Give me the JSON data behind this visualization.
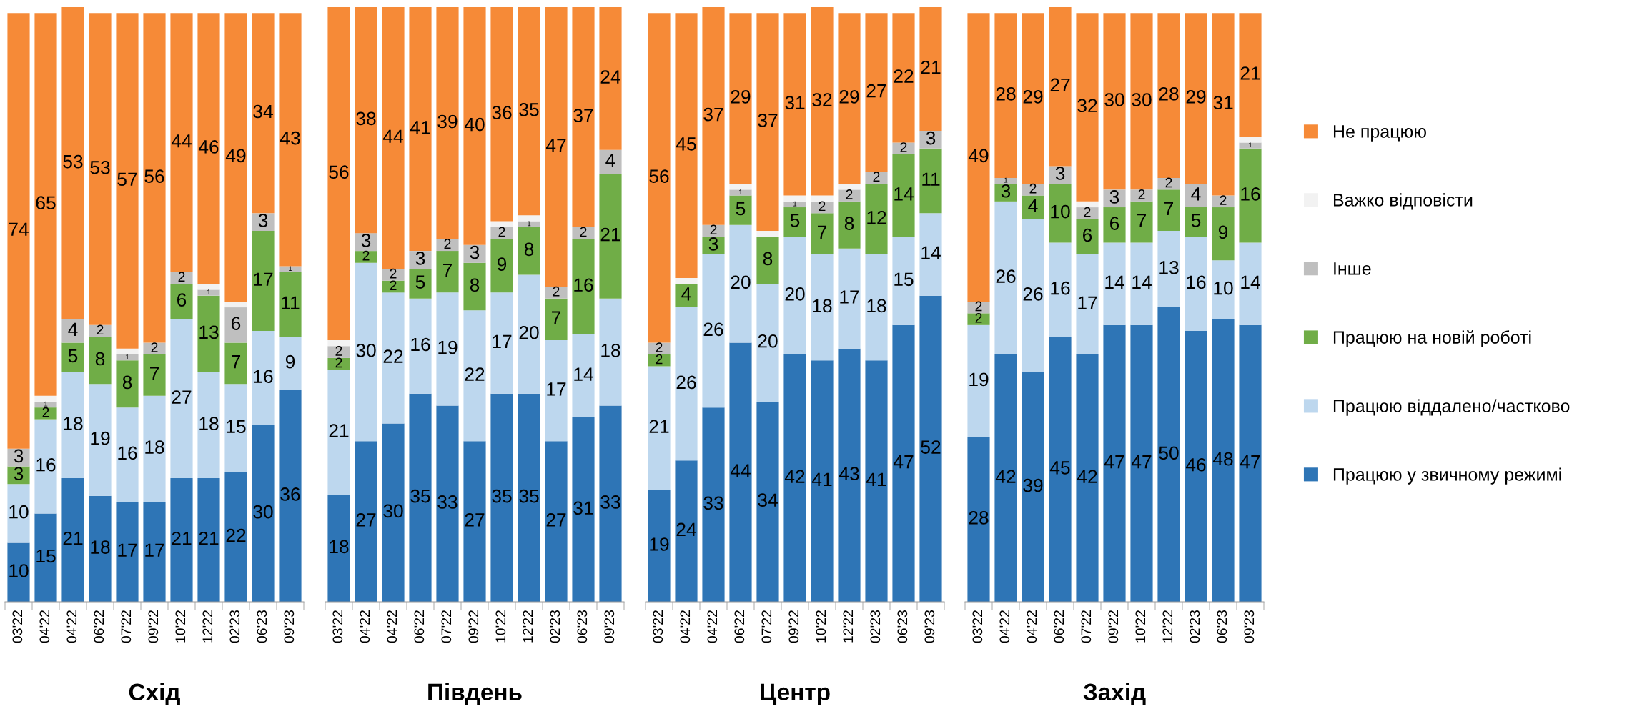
{
  "chart_data": [
    {
      "type": "bar",
      "stacked": true,
      "xlabel": "Схід",
      "categories": [
        "03'22",
        "04'22",
        "04'22",
        "06'22",
        "07'22",
        "09'22",
        "10'22",
        "12'22",
        "02'23",
        "06'23",
        "09'23"
      ],
      "tick_labels": "x",
      "grid": false,
      "legend": false,
      "series": [
        {
          "color": "#2e75b6",
          "values": [
            10,
            15,
            21,
            18,
            17,
            17,
            21,
            21,
            22,
            30,
            36
          ],
          "value_labels": [
            "10",
            "15",
            "21",
            "18",
            "17",
            "17",
            "21",
            "21",
            "22",
            "30",
            "36"
          ]
        },
        {
          "color": "#bdd7ee",
          "values": [
            10,
            16,
            18,
            19,
            16,
            18,
            27,
            18,
            15,
            16,
            9
          ],
          "value_labels": [
            "10",
            "16",
            "18",
            "19",
            "16",
            "18",
            "27",
            "18",
            "15",
            "16",
            "9"
          ]
        },
        {
          "color": "#70ad47",
          "values": [
            3,
            2,
            5,
            8,
            8,
            7,
            6,
            13,
            7,
            17,
            11
          ],
          "value_labels": [
            "3",
            "2",
            "5",
            "8",
            "8",
            "7",
            "6",
            "13",
            "7",
            "17",
            "11"
          ]
        },
        {
          "color": "#bfbfbf",
          "values": [
            3,
            1,
            4,
            2,
            1,
            2,
            2,
            1,
            6,
            3,
            1
          ],
          "value_labels": [
            "3",
            "1",
            "4",
            "2",
            "1",
            "2",
            "2",
            "1",
            "6",
            "3",
            "1"
          ]
        },
        {
          "color": "#f2f2f2",
          "values": [
            0,
            1,
            0,
            0,
            1,
            0,
            0,
            1,
            1,
            0,
            0
          ],
          "value_labels": [
            null,
            null,
            null,
            null,
            null,
            null,
            null,
            null,
            null,
            null,
            null
          ]
        },
        {
          "color": "#f68a37",
          "values": [
            74,
            65,
            53,
            53,
            57,
            56,
            44,
            46,
            49,
            34,
            43
          ],
          "value_labels": [
            "74",
            "65",
            "53",
            "53",
            "57",
            "56",
            "44",
            "46",
            "49",
            "34",
            "43"
          ]
        }
      ]
    },
    {
      "type": "bar",
      "stacked": true,
      "xlabel": "Південь",
      "categories": [
        "03'22",
        "04'22",
        "04'22",
        "06'22",
        "07'22",
        "09'22",
        "10'22",
        "12'22",
        "02'23",
        "06'23",
        "09'23"
      ],
      "tick_labels": "x",
      "grid": false,
      "legend": false,
      "series": [
        {
          "color": "#2e75b6",
          "values": [
            18,
            27,
            30,
            35,
            33,
            27,
            35,
            35,
            27,
            31,
            33
          ],
          "value_labels": [
            "18",
            "27",
            "30",
            "35",
            "33",
            "27",
            "35",
            "35",
            "27",
            "31",
            "33"
          ]
        },
        {
          "color": "#bdd7ee",
          "values": [
            21,
            30,
            22,
            16,
            19,
            22,
            17,
            20,
            17,
            14,
            18
          ],
          "value_labels": [
            "21",
            "30",
            "22",
            "16",
            "19",
            "22",
            "17",
            "20",
            "17",
            "14",
            "18"
          ]
        },
        {
          "color": "#70ad47",
          "values": [
            2,
            2,
            2,
            5,
            7,
            8,
            9,
            8,
            7,
            16,
            21
          ],
          "value_labels": [
            "2",
            "2",
            "2",
            "5",
            "7",
            "8",
            "9",
            "8",
            "7",
            "16",
            "21"
          ]
        },
        {
          "color": "#bfbfbf",
          "values": [
            2,
            3,
            2,
            3,
            2,
            3,
            2,
            1,
            2,
            2,
            4
          ],
          "value_labels": [
            "2",
            "3",
            "2",
            "3",
            "2",
            "3",
            "2",
            "1",
            "2",
            "2",
            "4"
          ]
        },
        {
          "color": "#f2f2f2",
          "values": [
            1,
            0,
            0,
            0,
            0,
            0,
            1,
            1,
            0,
            0,
            0
          ],
          "value_labels": [
            null,
            null,
            null,
            null,
            null,
            null,
            null,
            null,
            null,
            null,
            null
          ]
        },
        {
          "color": "#f68a37",
          "values": [
            56,
            38,
            44,
            41,
            39,
            40,
            36,
            35,
            47,
            37,
            24
          ],
          "value_labels": [
            "56",
            "38",
            "44",
            "41",
            "39",
            "40",
            "36",
            "35",
            "47",
            "37",
            "24"
          ]
        }
      ]
    },
    {
      "type": "bar",
      "stacked": true,
      "xlabel": "Центр",
      "categories": [
        "03'22",
        "04'22",
        "04'22",
        "06'22",
        "07'22",
        "09'22",
        "10'22",
        "12'22",
        "02'23",
        "06'23",
        "09'23"
      ],
      "tick_labels": "x",
      "grid": false,
      "legend": false,
      "series": [
        {
          "color": "#2e75b6",
          "values": [
            19,
            24,
            33,
            44,
            34,
            42,
            41,
            43,
            41,
            47,
            52
          ],
          "value_labels": [
            "19",
            "24",
            "33",
            "44",
            "34",
            "42",
            "41",
            "43",
            "41",
            "47",
            "52"
          ]
        },
        {
          "color": "#bdd7ee",
          "values": [
            21,
            26,
            26,
            20,
            20,
            20,
            18,
            17,
            18,
            15,
            14
          ],
          "value_labels": [
            "21",
            "26",
            "26",
            "20",
            "20",
            "20",
            "18",
            "17",
            "18",
            "15",
            "14"
          ]
        },
        {
          "color": "#70ad47",
          "values": [
            2,
            4,
            3,
            5,
            8,
            5,
            7,
            8,
            12,
            14,
            11
          ],
          "value_labels": [
            "2",
            "4",
            "3",
            "5",
            "8",
            "5",
            "7",
            "8",
            "12",
            "14",
            "11"
          ]
        },
        {
          "color": "#bfbfbf",
          "values": [
            2,
            null,
            2,
            1,
            null,
            1,
            2,
            2,
            2,
            2,
            3
          ],
          "value_labels": [
            "2",
            null,
            "2",
            "1",
            null,
            "1",
            "2",
            "2",
            "2",
            "2",
            "3"
          ]
        },
        {
          "color": "#f2f2f2",
          "values": [
            0,
            1,
            0,
            1,
            1,
            1,
            1,
            1,
            0,
            0,
            0
          ],
          "value_labels": [
            null,
            null,
            null,
            null,
            null,
            null,
            null,
            null,
            null,
            null,
            null
          ]
        },
        {
          "color": "#f68a37",
          "values": [
            56,
            45,
            37,
            29,
            37,
            31,
            32,
            29,
            27,
            22,
            21
          ],
          "value_labels": [
            "56",
            "45",
            "37",
            "29",
            "37",
            "31",
            "32",
            "29",
            "27",
            "22",
            "21"
          ]
        }
      ]
    },
    {
      "type": "bar",
      "stacked": true,
      "xlabel": "Захід",
      "categories": [
        "03'22",
        "04'22",
        "04'22",
        "06'22",
        "07'22",
        "09'22",
        "10'22",
        "12'22",
        "02'23",
        "06'23",
        "09'23"
      ],
      "tick_labels": "x",
      "grid": false,
      "legend": "right",
      "series": [
        {
          "name": "Працюю у звичному режимі",
          "color": "#2e75b6",
          "values": [
            28,
            42,
            39,
            45,
            42,
            47,
            47,
            50,
            46,
            48,
            47
          ],
          "value_labels": [
            "28",
            "42",
            "39",
            "45",
            "42",
            "47",
            "47",
            "50",
            "46",
            "48",
            "47"
          ]
        },
        {
          "name": "Працюю віддалено/частково",
          "color": "#bdd7ee",
          "values": [
            19,
            26,
            26,
            16,
            17,
            14,
            14,
            13,
            16,
            10,
            14
          ],
          "value_labels": [
            "19",
            "26",
            "26",
            "16",
            "17",
            "14",
            "14",
            "13",
            "16",
            "10",
            "14"
          ]
        },
        {
          "name": "Працюю на новій роботі",
          "color": "#70ad47",
          "values": [
            2,
            3,
            4,
            10,
            6,
            6,
            7,
            7,
            5,
            9,
            16
          ],
          "value_labels": [
            "2",
            "3",
            "4",
            "10",
            "6",
            "6",
            "7",
            "7",
            "5",
            "9",
            "16"
          ]
        },
        {
          "name": "Інше",
          "color": "#bfbfbf",
          "values": [
            2,
            1,
            2,
            3,
            2,
            3,
            2,
            2,
            4,
            2,
            1
          ],
          "value_labels": [
            "2",
            "1",
            "2",
            "3",
            "2",
            "3",
            "2",
            "2",
            "4",
            "2",
            "1"
          ]
        },
        {
          "name": "Важко відповісти",
          "color": "#f2f2f2",
          "values": [
            0,
            0,
            0,
            0,
            1,
            0,
            0,
            0,
            0,
            0,
            1
          ],
          "value_labels": [
            null,
            null,
            null,
            null,
            null,
            null,
            null,
            null,
            null,
            null,
            null
          ]
        },
        {
          "name": "Не працюю",
          "color": "#f68a37",
          "values": [
            49,
            28,
            29,
            27,
            32,
            30,
            30,
            28,
            29,
            31,
            21
          ],
          "value_labels": [
            "49",
            "28",
            "29",
            "27",
            "32",
            "30",
            "30",
            "28",
            "29",
            "31",
            "21"
          ]
        }
      ]
    }
  ]
}
